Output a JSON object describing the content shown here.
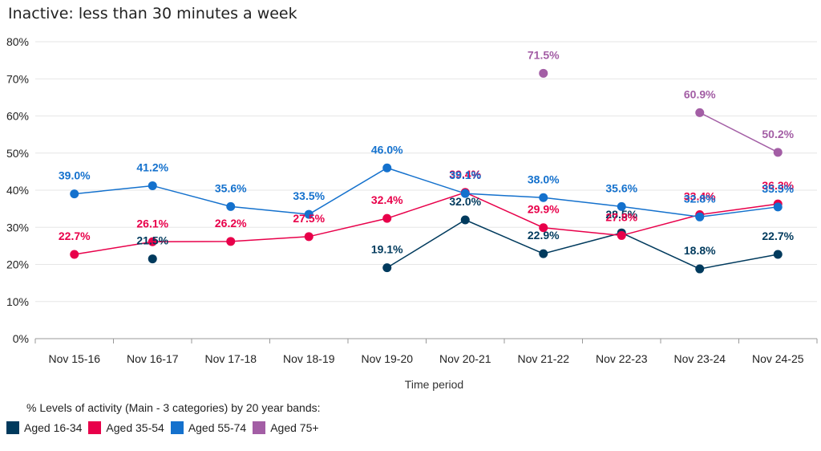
{
  "chart_data": {
    "type": "line",
    "title": "Inactive: less than 30 minutes a week",
    "xlabel": "Time period",
    "ylabel": "",
    "ylim": [
      0,
      80
    ],
    "yticks": [
      "0%",
      "10%",
      "20%",
      "30%",
      "40%",
      "50%",
      "60%",
      "70%",
      "80%"
    ],
    "grid": true,
    "categories": [
      "Nov 15-16",
      "Nov 16-17",
      "Nov 17-18",
      "Nov 18-19",
      "Nov 19-20",
      "Nov 20-21",
      "Nov 21-22",
      "Nov 22-23",
      "Nov 23-24",
      "Nov 24-25"
    ],
    "legend_title": "% Levels of activity (Main - 3 categories) by 20 year bands:",
    "legend_position": "bottom-left",
    "series": [
      {
        "name": "Aged 16-34",
        "color": "#003a5d",
        "values": [
          null,
          21.5,
          null,
          null,
          19.1,
          32.0,
          22.9,
          28.5,
          18.8,
          22.7
        ],
        "labels": [
          "",
          "21.5%",
          "",
          "",
          "19.1%",
          "32.0%",
          "22.9%",
          "28.5%",
          "18.8%",
          "22.7%"
        ]
      },
      {
        "name": "Aged 35-54",
        "color": "#e8004a",
        "values": [
          22.7,
          26.1,
          26.2,
          27.5,
          32.4,
          39.4,
          29.9,
          27.8,
          33.4,
          36.3
        ],
        "labels": [
          "22.7%",
          "26.1%",
          "26.2%",
          "27.5%",
          "32.4%",
          "39.4%",
          "29.9%",
          "27.8%",
          "33.4%",
          "36.3%"
        ]
      },
      {
        "name": "Aged 55-74",
        "color": "#1471cd",
        "values": [
          39.0,
          41.2,
          35.6,
          33.5,
          46.0,
          39.1,
          38.0,
          35.6,
          32.8,
          35.5
        ],
        "labels": [
          "39.0%",
          "41.2%",
          "35.6%",
          "33.5%",
          "46.0%",
          "39.1%",
          "38.0%",
          "35.6%",
          "32.8%",
          "35.5%"
        ]
      },
      {
        "name": "Aged 75+",
        "color": "#a35ea5",
        "values": [
          null,
          null,
          null,
          null,
          null,
          null,
          71.5,
          null,
          60.9,
          50.2
        ],
        "labels": [
          "",
          "",
          "",
          "",
          "",
          "",
          "71.5%",
          "",
          "60.9%",
          "50.2%"
        ]
      }
    ]
  }
}
